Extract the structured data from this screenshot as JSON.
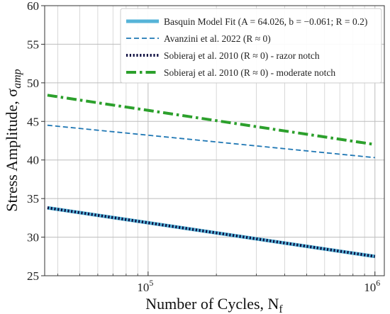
{
  "chart_data": {
    "type": "line",
    "xscale": "log",
    "xlim": [
      35000,
      1100000
    ],
    "ylim": [
      25,
      60
    ],
    "xlabel": "Number of Cycles, N",
    "xlabel_sub": "f",
    "ylabel": "Stress Amplitude, σ",
    "ylabel_sub": "amp",
    "x_ticks": [
      {
        "value": 100000,
        "mantissa": "10",
        "exp": "5"
      },
      {
        "value": 1000000,
        "mantissa": "10",
        "exp": "6"
      }
    ],
    "y_ticks": [
      "25",
      "30",
      "35",
      "40",
      "45",
      "50",
      "55",
      "60"
    ],
    "grid": true,
    "legend_position": "top-right",
    "series": [
      {
        "name": "Basquin Model Fit (A = 64.026, b = −0.061; R = 0.2)",
        "color": "#56b4d8",
        "style": "solid-thick",
        "x": [
          36000,
          1000000
        ],
        "y": [
          33.8,
          27.5
        ]
      },
      {
        "name": "Avanzini et al. 2022 (R ≈ 0)",
        "color": "#1f77b4",
        "style": "dashed",
        "x": [
          36000,
          1000000
        ],
        "y": [
          44.5,
          40.3
        ]
      },
      {
        "name": "Sobieraj et al. 2010 (R ≈ 0) - razor notch",
        "color": "#0d0d40",
        "style": "dotted",
        "x": [
          36000,
          1000000
        ],
        "y": [
          33.8,
          27.5
        ]
      },
      {
        "name": "Sobieraj et al. 2010 (R ≈ 0) - moderate notch",
        "color": "#2ca02c",
        "style": "dashdot",
        "x": [
          36000,
          1000000
        ],
        "y": [
          48.4,
          42.0
        ]
      }
    ]
  }
}
